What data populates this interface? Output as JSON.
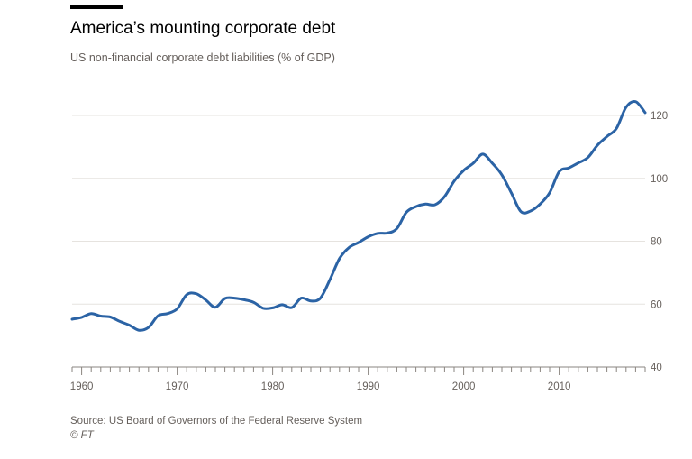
{
  "header": {
    "title": "America’s mounting corporate debt",
    "subtitle": "US non-financial corporate debt liabilities (% of GDP)"
  },
  "footer": {
    "source": "Source: US Board of Governors of the Federal Reserve System",
    "credit": "© FT"
  },
  "colors": {
    "line": "#2b63a5",
    "grid": "#e6e3df",
    "axis": "#8a8580",
    "text": "#66605c"
  },
  "chart_data": {
    "type": "line",
    "title": "America’s mounting corporate debt",
    "subtitle": "US non-financial corporate debt liabilities (% of GDP)",
    "xlim": [
      1959,
      2019
    ],
    "ylim": [
      40,
      120
    ],
    "x_ticks": [
      1960,
      1970,
      1980,
      1990,
      2000,
      2010
    ],
    "x_tick_labels": [
      "1960",
      "1970",
      "1980",
      "1990",
      "2000",
      "2010"
    ],
    "y_ticks": [
      40,
      60,
      80,
      100,
      120
    ],
    "y_tick_labels": [
      "40",
      "60",
      "80",
      "100",
      "120"
    ],
    "grid": "horizontal",
    "series": [
      {
        "values": [
          [
            1959,
            55.2
          ],
          [
            1960,
            55.8
          ],
          [
            1961,
            57.0
          ],
          [
            1962,
            56.2
          ],
          [
            1963,
            55.9
          ],
          [
            1964,
            54.5
          ],
          [
            1965,
            53.3
          ],
          [
            1966,
            51.7
          ],
          [
            1967,
            52.6
          ],
          [
            1968,
            56.3
          ],
          [
            1969,
            57.0
          ],
          [
            1970,
            58.5
          ],
          [
            1971,
            63.0
          ],
          [
            1972,
            63.3
          ],
          [
            1973,
            61.3
          ],
          [
            1974,
            59.0
          ],
          [
            1975,
            61.8
          ],
          [
            1976,
            61.9
          ],
          [
            1977,
            61.4
          ],
          [
            1978,
            60.6
          ],
          [
            1979,
            58.7
          ],
          [
            1980,
            58.8
          ],
          [
            1981,
            59.8
          ],
          [
            1982,
            58.9
          ],
          [
            1983,
            61.9
          ],
          [
            1984,
            61.0
          ],
          [
            1985,
            61.9
          ],
          [
            1986,
            67.8
          ],
          [
            1987,
            74.5
          ],
          [
            1988,
            78.0
          ],
          [
            1989,
            79.6
          ],
          [
            1990,
            81.4
          ],
          [
            1991,
            82.5
          ],
          [
            1992,
            82.6
          ],
          [
            1993,
            84.0
          ],
          [
            1994,
            89.2
          ],
          [
            1995,
            91.0
          ],
          [
            1996,
            91.8
          ],
          [
            1997,
            91.6
          ],
          [
            1998,
            94.2
          ],
          [
            1999,
            99.1
          ],
          [
            2000,
            102.5
          ],
          [
            2001,
            104.8
          ],
          [
            2002,
            107.7
          ],
          [
            2003,
            104.8
          ],
          [
            2004,
            101.1
          ],
          [
            2005,
            95.3
          ],
          [
            2006,
            89.4
          ],
          [
            2007,
            89.6
          ],
          [
            2008,
            91.8
          ],
          [
            2009,
            95.4
          ],
          [
            2010,
            102.1
          ],
          [
            2011,
            103.3
          ],
          [
            2012,
            104.9
          ],
          [
            2013,
            106.6
          ],
          [
            2014,
            110.5
          ],
          [
            2015,
            113.3
          ],
          [
            2016,
            115.9
          ],
          [
            2017,
            122.6
          ],
          [
            2018,
            124.4
          ],
          [
            2019,
            120.9
          ]
        ]
      }
    ]
  }
}
